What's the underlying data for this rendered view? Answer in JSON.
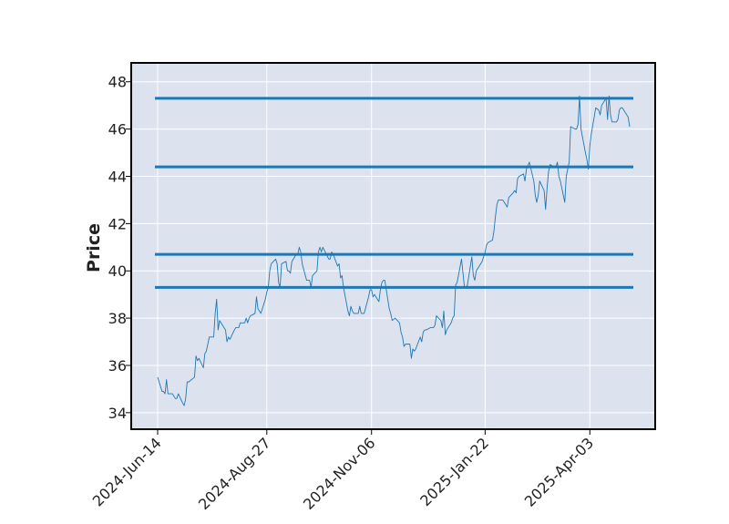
{
  "chart_data": {
    "type": "line",
    "title": "",
    "xlabel": "",
    "ylabel": "Price",
    "ylim": [
      33.3,
      48.8
    ],
    "y_ticks": [
      34,
      36,
      38,
      40,
      42,
      44,
      46,
      48
    ],
    "x_start": "2024-06-14",
    "x_end": "2025-04-30",
    "x_ticks": [
      "2024-Jun-14",
      "2024-Aug-27",
      "2024-Nov-06",
      "2025-Jan-22",
      "2025-Apr-03"
    ],
    "grid": true,
    "colors": {
      "background": "#dde2ef",
      "grid": "#ffffff",
      "series": "#1f77b4",
      "levels": "#1f77b4",
      "frame": "#000000"
    },
    "series": [
      {
        "values": [
          35.5,
          34.9,
          34.9,
          34.8,
          35.4,
          34.8,
          34.8,
          34.7,
          34.6,
          34.6,
          34.8,
          34.4,
          34.3,
          34.6,
          35.3,
          35.3,
          35.5,
          36.4,
          36.2,
          36.3,
          35.9,
          36.5,
          36.6,
          36.9,
          37.2,
          37.2,
          38.2,
          38.8,
          37.5,
          37.9,
          37.6,
          37.5,
          37.0,
          37.2,
          37.1,
          37.5,
          37.6,
          37.6,
          37.6,
          37.8,
          37.8,
          38.0,
          37.8,
          38.0,
          38.1,
          38.2,
          38.9,
          38.4,
          38.2,
          38.8,
          39.1,
          39.3,
          40.0,
          40.3,
          40.5,
          40.3,
          39.5,
          39.3,
          40.3,
          40.4,
          40.0,
          40.0,
          39.9,
          40.4,
          40.7,
          40.7,
          41.0,
          40.8,
          40.3,
          39.6,
          39.6,
          39.6,
          39.3,
          39.8,
          40.0,
          40.8,
          41.0,
          40.8,
          41.0,
          40.5,
          40.5,
          40.8,
          40.7,
          40.2,
          40.3,
          39.7,
          39.8,
          39.3,
          38.3,
          38.1,
          38.5,
          38.3,
          38.2,
          38.2,
          38.5,
          38.2,
          38.2,
          38.2,
          38.9,
          39.2,
          39.2,
          38.9,
          39.0,
          38.7,
          39.2,
          39.5,
          39.6,
          39.6,
          38.4,
          38.2,
          37.9,
          38.0,
          37.8,
          37.4,
          37.2,
          36.8,
          36.9,
          36.9,
          36.3,
          36.7,
          36.6,
          36.7,
          37.2,
          37.0,
          37.4,
          37.5,
          37.5,
          37.6,
          37.6,
          37.6,
          37.7,
          38.1,
          37.9,
          37.6,
          38.3,
          37.3,
          37.5,
          37.8,
          38.0,
          38.1,
          39.4,
          39.5,
          40.5,
          39.3,
          39.3,
          39.4,
          40.6,
          39.8,
          39.6,
          40.0,
          40.1,
          40.4,
          40.6,
          40.8,
          41.1,
          41.2,
          41.3,
          41.7,
          42.3,
          42.8,
          43.0,
          43.0,
          42.9,
          42.8,
          42.7,
          43.1,
          43.3,
          43.4,
          43.3,
          43.9,
          44.0,
          44.1,
          43.8,
          44.3,
          44.6,
          43.8,
          43.2,
          42.9,
          43.2,
          43.8,
          43.4,
          42.6,
          43.5,
          44.2,
          44.5,
          44.4,
          44.4,
          44.6,
          44.0,
          43.8,
          42.9,
          44.0,
          44.3,
          44.6,
          46.1,
          46.0,
          46.0,
          46.2,
          47.4,
          46.0,
          45.0,
          44.7,
          44.3,
          45.3,
          45.8,
          46.9,
          46.8,
          46.6,
          47.0,
          47.3,
          46.4,
          47.4,
          46.6,
          46.3,
          46.3,
          46.4,
          46.8,
          46.9,
          46.9,
          46.6,
          46.5,
          46.1
        ]
      }
    ],
    "levels": [
      39.3,
      40.7,
      44.4,
      47.3
    ]
  }
}
